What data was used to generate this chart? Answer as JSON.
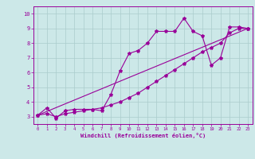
{
  "xlabel": "Windchill (Refroidissement éolien,°C)",
  "ylabel": "",
  "bg_color": "#cce8e8",
  "line_color": "#990099",
  "grid_color": "#aacccc",
  "xlim": [
    -0.5,
    23.5
  ],
  "ylim": [
    2.5,
    10.5
  ],
  "xticks": [
    0,
    1,
    2,
    3,
    4,
    5,
    6,
    7,
    8,
    9,
    10,
    11,
    12,
    13,
    14,
    15,
    16,
    17,
    18,
    19,
    20,
    21,
    22,
    23
  ],
  "yticks": [
    3,
    4,
    5,
    6,
    7,
    8,
    9,
    10
  ],
  "line1_x": [
    0,
    1,
    2,
    3,
    4,
    5,
    6,
    7,
    8,
    9,
    10,
    11,
    12,
    13,
    14,
    15,
    16,
    17,
    18,
    19,
    20,
    21,
    22,
    23
  ],
  "line1_y": [
    3.1,
    3.6,
    2.9,
    3.4,
    3.5,
    3.5,
    3.5,
    3.4,
    4.5,
    6.1,
    7.3,
    7.5,
    8.0,
    8.8,
    8.8,
    8.8,
    9.7,
    8.8,
    8.5,
    6.5,
    7.0,
    9.1,
    9.1,
    9.0
  ],
  "line2_x": [
    0,
    1,
    2,
    3,
    4,
    5,
    6,
    7,
    8,
    9,
    10,
    11,
    12,
    13,
    14,
    15,
    16,
    17,
    18,
    19,
    20,
    21,
    22,
    23
  ],
  "line2_y": [
    3.1,
    3.2,
    3.0,
    3.2,
    3.3,
    3.4,
    3.5,
    3.6,
    3.8,
    4.0,
    4.3,
    4.6,
    5.0,
    5.4,
    5.8,
    6.2,
    6.6,
    7.0,
    7.4,
    7.7,
    8.0,
    8.7,
    9.0,
    9.0
  ],
  "line3_x": [
    0,
    23
  ],
  "line3_y": [
    3.1,
    9.0
  ]
}
